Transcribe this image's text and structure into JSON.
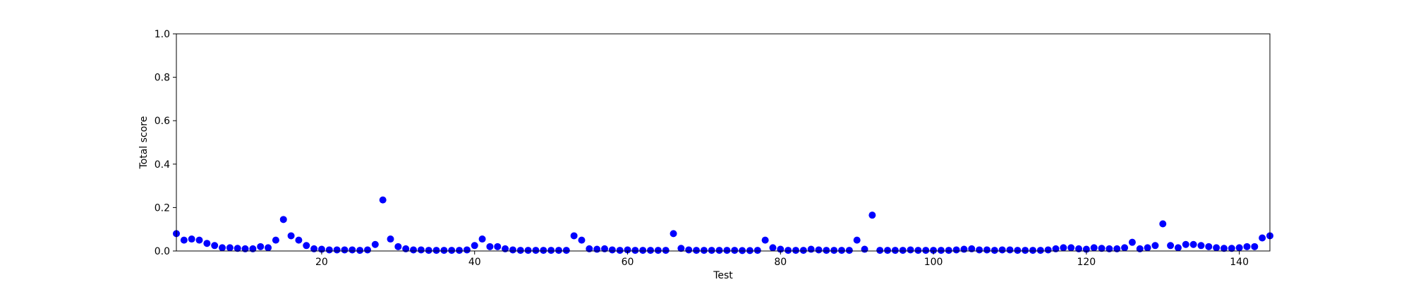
{
  "chart_data": {
    "type": "scatter",
    "xlabel": "Test",
    "ylabel": "Total score",
    "xlim": [
      1,
      144
    ],
    "ylim": [
      0,
      1.0
    ],
    "xticks": [
      20,
      40,
      60,
      80,
      100,
      120,
      140
    ],
    "yticks": [
      0.0,
      0.2,
      0.4,
      0.6,
      0.8,
      1.0
    ],
    "grid": false,
    "marker_color": "#0000ff",
    "x": [
      1,
      2,
      3,
      4,
      5,
      6,
      7,
      8,
      9,
      10,
      11,
      12,
      13,
      14,
      15,
      16,
      17,
      18,
      19,
      20,
      21,
      22,
      23,
      24,
      25,
      26,
      27,
      28,
      29,
      30,
      31,
      32,
      33,
      34,
      35,
      36,
      37,
      38,
      39,
      40,
      41,
      42,
      43,
      44,
      45,
      46,
      47,
      48,
      49,
      50,
      51,
      52,
      53,
      54,
      55,
      56,
      57,
      58,
      59,
      60,
      61,
      62,
      63,
      64,
      65,
      66,
      67,
      68,
      69,
      70,
      71,
      72,
      73,
      74,
      75,
      76,
      77,
      78,
      79,
      80,
      81,
      82,
      83,
      84,
      85,
      86,
      87,
      88,
      89,
      90,
      91,
      92,
      93,
      94,
      95,
      96,
      97,
      98,
      99,
      100,
      101,
      102,
      103,
      104,
      105,
      106,
      107,
      108,
      109,
      110,
      111,
      112,
      113,
      114,
      115,
      116,
      117,
      118,
      119,
      120,
      121,
      122,
      123,
      124,
      125,
      126,
      127,
      128,
      129,
      130,
      131,
      132,
      133,
      134,
      135,
      136,
      137,
      138,
      139,
      140,
      141,
      142,
      143,
      144
    ],
    "y": [
      0.08,
      0.05,
      0.055,
      0.05,
      0.035,
      0.025,
      0.015,
      0.015,
      0.012,
      0.01,
      0.01,
      0.02,
      0.015,
      0.05,
      0.145,
      0.07,
      0.05,
      0.025,
      0.01,
      0.008,
      0.005,
      0.005,
      0.005,
      0.005,
      0.003,
      0.005,
      0.03,
      0.235,
      0.055,
      0.02,
      0.01,
      0.005,
      0.005,
      0.003,
      0.003,
      0.003,
      0.003,
      0.003,
      0.005,
      0.025,
      0.055,
      0.02,
      0.02,
      0.01,
      0.005,
      0.003,
      0.003,
      0.003,
      0.003,
      0.003,
      0.003,
      0.003,
      0.07,
      0.05,
      0.01,
      0.008,
      0.01,
      0.005,
      0.003,
      0.005,
      0.003,
      0.003,
      0.003,
      0.003,
      0.003,
      0.08,
      0.012,
      0.005,
      0.003,
      0.003,
      0.003,
      0.003,
      0.003,
      0.003,
      0.002,
      0.002,
      0.003,
      0.05,
      0.015,
      0.008,
      0.003,
      0.003,
      0.003,
      0.008,
      0.005,
      0.003,
      0.003,
      0.003,
      0.003,
      0.05,
      0.008,
      0.165,
      0.003,
      0.003,
      0.003,
      0.003,
      0.005,
      0.003,
      0.003,
      0.003,
      0.003,
      0.003,
      0.005,
      0.008,
      0.01,
      0.005,
      0.005,
      0.003,
      0.005,
      0.005,
      0.003,
      0.003,
      0.003,
      0.003,
      0.005,
      0.01,
      0.015,
      0.015,
      0.01,
      0.008,
      0.015,
      0.012,
      0.01,
      0.01,
      0.015,
      0.04,
      0.01,
      0.015,
      0.025,
      0.125,
      0.025,
      0.015,
      0.03,
      0.03,
      0.025,
      0.02,
      0.015,
      0.012,
      0.012,
      0.015,
      0.02,
      0.02,
      0.06,
      0.07
    ]
  }
}
